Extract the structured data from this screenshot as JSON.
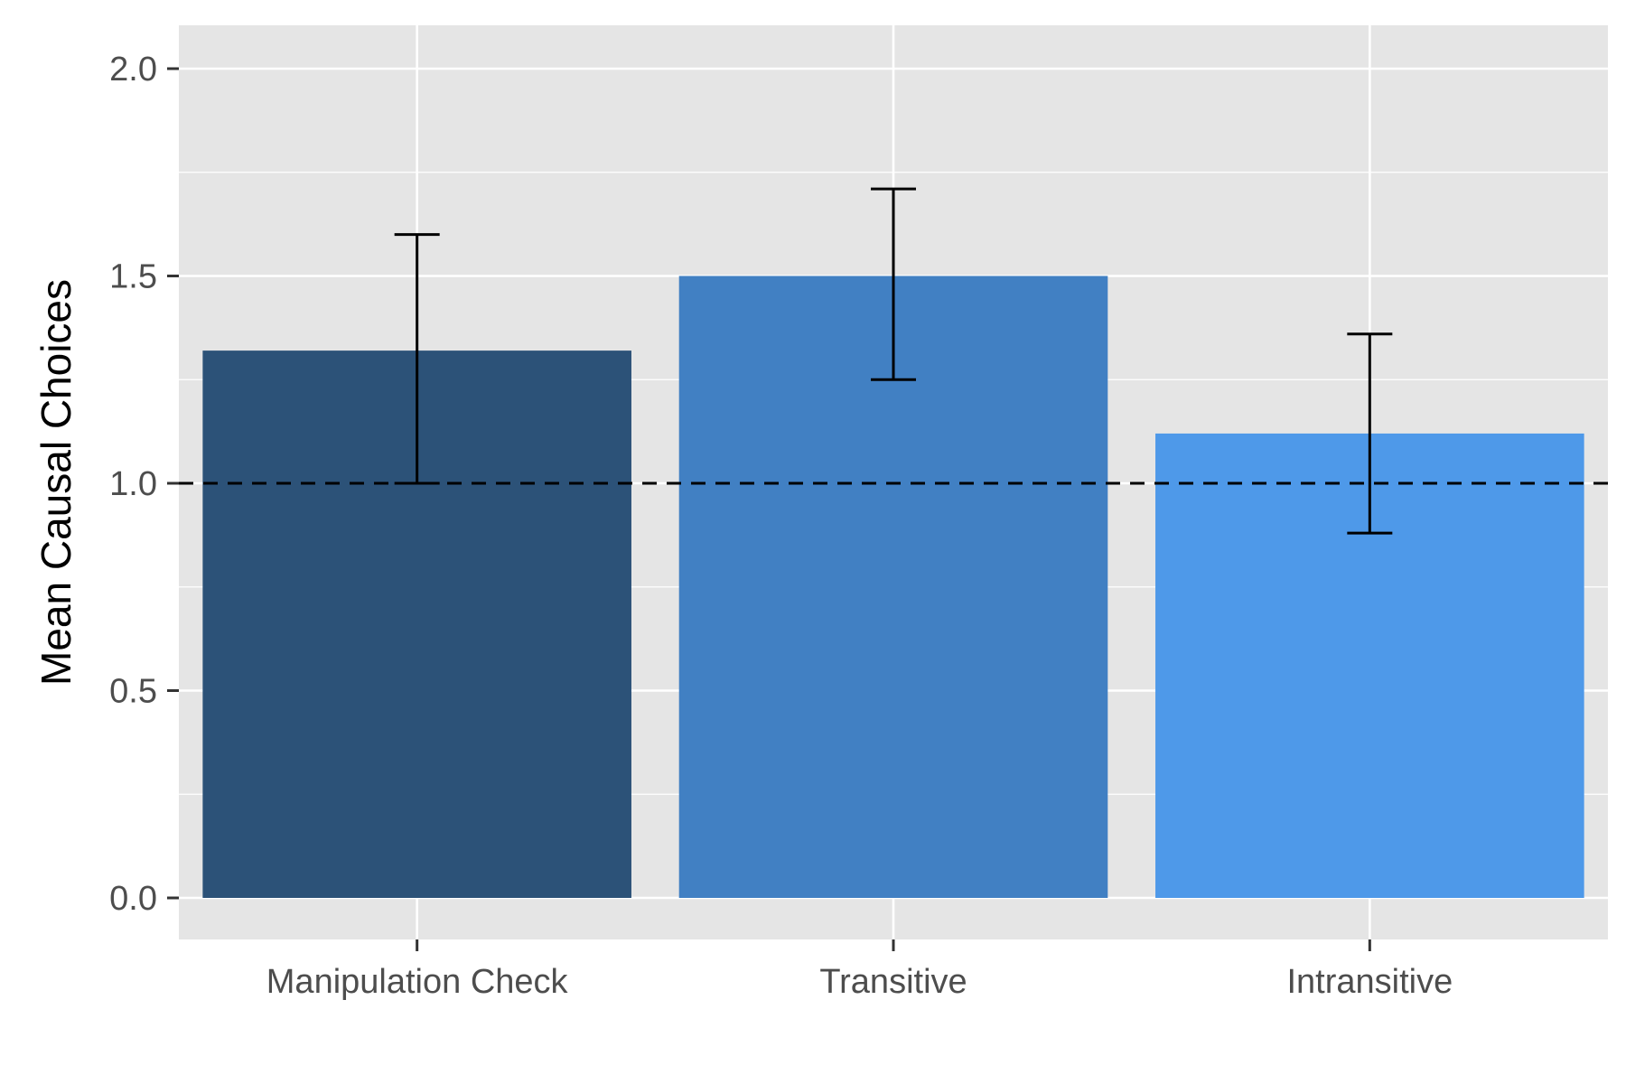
{
  "chart_data": {
    "type": "bar",
    "title": "",
    "xlabel": "",
    "ylabel": "Mean Causal Choices",
    "categories": [
      "Manipulation Check",
      "Transitive",
      "Intransitive"
    ],
    "values": [
      1.32,
      1.5,
      1.12
    ],
    "error_low": [
      1.0,
      1.25,
      0.88
    ],
    "error_high": [
      1.6,
      1.71,
      1.36
    ],
    "ylim": [
      -0.1,
      2.1
    ],
    "yticks": [
      0.0,
      0.5,
      1.0,
      1.5,
      2.0
    ],
    "ytick_labels": [
      "0.0",
      "0.5",
      "1.0",
      "1.5",
      "2.0"
    ],
    "reference_line": 1.0,
    "grid": true,
    "legend": "none",
    "colors": [
      "#2c5278",
      "#4180c3",
      "#4e99e9"
    ],
    "panel_background": "#e5e5e5",
    "gridline_color": "#ffffff"
  }
}
